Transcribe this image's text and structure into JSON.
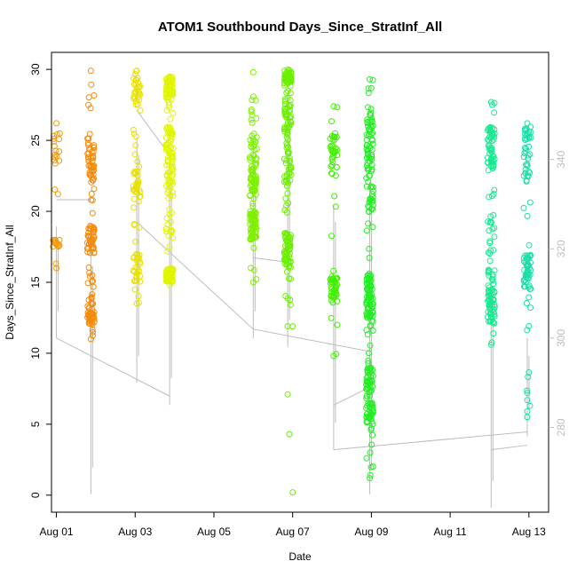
{
  "chart_data": {
    "type": "scatter",
    "title": "ATOM1 Southbound Days_Since_StratInf_All",
    "xlabel": "Date",
    "ylabel": "Days_Since_StratInf_All",
    "x_ticks": [
      {
        "date": "2024-08-01",
        "label": "Aug 01"
      },
      {
        "date": "2024-08-03",
        "label": "Aug 03"
      },
      {
        "date": "2024-08-05",
        "label": "Aug 05"
      },
      {
        "date": "2024-08-07",
        "label": "Aug 07"
      },
      {
        "date": "2024-08-09",
        "label": "Aug 09"
      },
      {
        "date": "2024-08-11",
        "label": "Aug 11"
      },
      {
        "date": "2024-08-13",
        "label": "Aug 13"
      }
    ],
    "xlim": [
      "2024-07-31T21:00",
      "2024-08-13T12:00"
    ],
    "ylim": [
      -1.2,
      31.2
    ],
    "y_ticks": [
      0,
      5,
      10,
      15,
      20,
      25,
      30
    ],
    "y2_ticks": [
      280,
      300,
      320,
      340
    ],
    "y2lim": [
      261,
      364
    ],
    "y2_color": "#bdbdbd",
    "grid": false,
    "legend": "none",
    "point_style": "open circles, color varies with date (orange to cyan)",
    "series": [
      {
        "x": "2024-08-01T00:00",
        "y_range": [
          16.0,
          26.2
        ],
        "density": 34,
        "color": "#f59a08",
        "clusters": [
          [
            23.5,
            26
          ],
          [
            17.5,
            18
          ]
        ],
        "y2_range": [
          300,
          325
        ]
      },
      {
        "x": "2024-08-01T21:00",
        "y_range": [
          11.0,
          29.9
        ],
        "density": 150,
        "color": "#f58a0a",
        "clusters": [
          [
            12,
            14
          ],
          [
            22,
            25.5
          ],
          [
            17,
            19
          ]
        ],
        "y2_range": [
          265,
          320
        ]
      },
      {
        "x": "2024-08-03T01:00",
        "y_range": [
          13.5,
          29.9
        ],
        "density": 100,
        "color": "#e8e000",
        "clusters": [
          [
            27.5,
            29.5
          ],
          [
            15,
            17
          ],
          [
            21,
            23
          ]
        ],
        "y2_range": [
          290,
          345
        ]
      },
      {
        "x": "2024-08-03T21:00",
        "y_range": [
          14.8,
          29.5
        ],
        "density": 230,
        "color": "#e0f500",
        "clusters": [
          [
            21,
            26
          ],
          [
            28,
            29.5
          ],
          [
            15,
            16
          ]
        ],
        "y2_range": [
          285,
          340
        ]
      },
      {
        "x": "2024-08-06T00:00",
        "y_range": [
          15.0,
          29.8
        ],
        "density": 150,
        "color": "#7ef000",
        "clusters": [
          [
            21,
            25.5
          ],
          [
            18,
            20
          ]
        ],
        "y2_range": [
          300,
          345
        ]
      },
      {
        "x": "2024-08-06T21:00",
        "y_range": [
          11.9,
          30.0
        ],
        "density": 200,
        "color": "#6cef00",
        "clusters": [
          [
            22,
            28
          ],
          [
            29,
            30
          ],
          [
            16,
            18.5
          ]
        ],
        "y2_range": [
          298,
          355
        ]
      },
      {
        "x": "2024-08-08T01:00",
        "y_range": [
          9.8,
          27.4
        ],
        "density": 80,
        "color": "#40f000",
        "clusters": [
          [
            22.5,
            25.5
          ],
          [
            13.5,
            15.5
          ]
        ],
        "y2_range": [
          275,
          330
        ]
      },
      {
        "x": "2024-08-08T23:00",
        "y_range": [
          1.2,
          29.3
        ],
        "density": 260,
        "color": "#20ee20",
        "clusters": [
          [
            20,
            27
          ],
          [
            12.5,
            15.5
          ],
          [
            5,
            9
          ]
        ],
        "y2_range": [
          265,
          335
        ]
      },
      {
        "x": "2024-08-12T01:00",
        "y_range": [
          10.6,
          27.7
        ],
        "density": 140,
        "color": "#18e890",
        "clusters": [
          [
            12,
            16
          ],
          [
            23,
            26
          ]
        ],
        "y2_range": [
          262,
          315
        ]
      },
      {
        "x": "2024-08-12T23:00",
        "y_range": [
          5.5,
          26.2
        ],
        "density": 100,
        "color": "#1ae0a8",
        "clusters": [
          [
            22,
            26
          ],
          [
            14.5,
            17
          ]
        ],
        "y2_range": [
          278,
          300
        ]
      }
    ],
    "outliers": [
      {
        "x": "2024-08-06T21:00",
        "y": 7.1,
        "color": "#6cef00"
      },
      {
        "x": "2024-08-06T22:00",
        "y": 4.3,
        "color": "#6cef00"
      },
      {
        "x": "2024-08-07T00:00",
        "y": 0.2,
        "color": "#6cef00"
      },
      {
        "x": "2024-08-07T00:00",
        "y": 11.9,
        "color": "#6cef00"
      },
      {
        "x": "2024-08-12T23:00",
        "y": 7.2,
        "color": "#1ae0a8"
      },
      {
        "x": "2024-08-12T23:00",
        "y": 6.7,
        "color": "#1ae0a8"
      },
      {
        "x": "2024-08-12T23:00",
        "y": 5.9,
        "color": "#1ae0a8"
      },
      {
        "x": "2024-08-12T23:00",
        "y": 5.5,
        "color": "#1ae0a8"
      }
    ],
    "secondary_line": {
      "color": "#bdbdbd",
      "axis": "y2",
      "points": [
        [
          "2024-08-01T00:00",
          331
        ],
        [
          "2024-08-01T21:00",
          331
        ],
        [
          "2024-08-01T00:00",
          300
        ],
        [
          "2024-08-03T21:00",
          287
        ],
        [
          "2024-08-03T01:00",
          351
        ],
        [
          "2024-08-03T21:00",
          341
        ],
        [
          "2024-08-03T01:00",
          326
        ],
        [
          "2024-08-06T00:00",
          302
        ],
        [
          "2024-08-06T00:00",
          318
        ],
        [
          "2024-08-06T21:00",
          317
        ],
        [
          "2024-08-06T00:00",
          302
        ],
        [
          "2024-08-08T23:00",
          297
        ],
        [
          "2024-08-08T01:00",
          285
        ],
        [
          "2024-08-08T23:00",
          289
        ],
        [
          "2024-08-08T01:00",
          275
        ],
        [
          "2024-08-12T23:00",
          279
        ],
        [
          "2024-08-12T01:00",
          275
        ],
        [
          "2024-08-12T23:00",
          276
        ]
      ]
    }
  }
}
